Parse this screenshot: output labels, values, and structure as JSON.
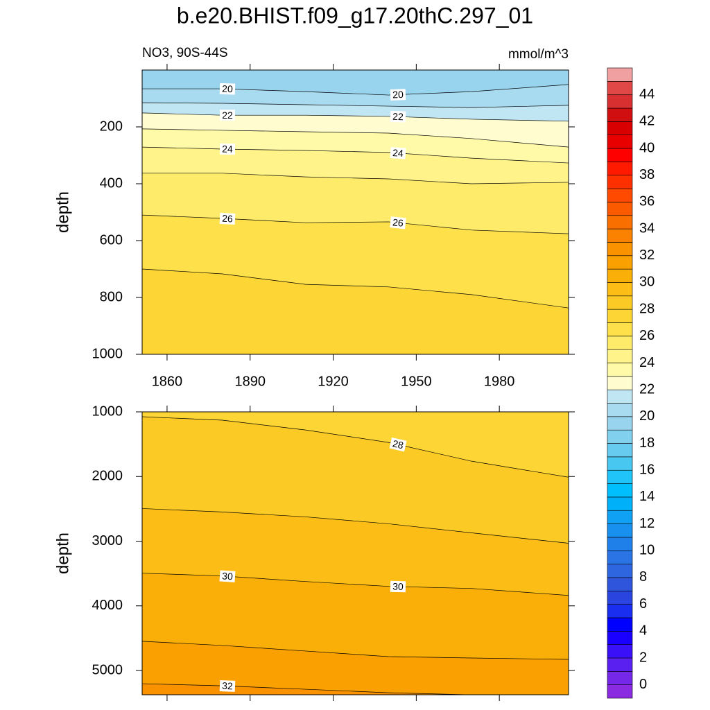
{
  "chart_data": [
    {
      "type": "contour",
      "title": "b.e20.BHIST.f09_g17.20thC.297_01",
      "subtitle": "NO3, 90S-44S",
      "units": "mmol/m^3",
      "ylabel": "depth",
      "xlim": [
        1851,
        2005
      ],
      "xticks": [
        1860,
        1890,
        1920,
        1950,
        1980
      ],
      "show_xtick_labels": true,
      "ylim": [
        0,
        1000
      ],
      "yticks": [
        200,
        400,
        600,
        800,
        1000
      ],
      "y_reversed": true,
      "x": [
        1851,
        1880,
        1910,
        1940,
        1970,
        2005
      ],
      "contours": [
        {
          "level": 20,
          "values": [
            66,
            66,
            76,
            88,
            76,
            51
          ]
        },
        {
          "level": 21,
          "values": [
            115,
            117,
            122,
            127,
            132,
            124
          ]
        },
        {
          "level": 22,
          "values": [
            151,
            159,
            159,
            163,
            173,
            180
          ]
        },
        {
          "level": 23,
          "values": [
            207,
            212,
            217,
            222,
            241,
            271
          ]
        },
        {
          "level": 24,
          "values": [
            271,
            278,
            283,
            290,
            310,
            327
          ]
        },
        {
          "level": 25,
          "values": [
            363,
            363,
            376,
            383,
            400,
            395
          ]
        },
        {
          "level": 26,
          "values": [
            510,
            522,
            537,
            534,
            563,
            576
          ]
        },
        {
          "level": 27,
          "values": [
            700,
            717,
            754,
            763,
            790,
            837
          ]
        }
      ]
    },
    {
      "type": "contour",
      "ylabel": "depth",
      "xlim": [
        1851,
        2005
      ],
      "xticks": [
        1860,
        1890,
        1920,
        1950,
        1980
      ],
      "show_xtick_labels": false,
      "ylim": [
        1000,
        5375
      ],
      "yticks": [
        1000,
        2000,
        3000,
        4000,
        5000
      ],
      "y_reversed": true,
      "x": [
        1851,
        1880,
        1910,
        1940,
        1970,
        2005
      ],
      "contours": [
        {
          "level": 28,
          "values": [
            1075,
            1129,
            1280,
            1473,
            1763,
            2011
          ]
        },
        {
          "level": 29,
          "values": [
            2495,
            2548,
            2624,
            2731,
            2871,
            3032
          ]
        },
        {
          "level": 30,
          "values": [
            3495,
            3538,
            3624,
            3699,
            3731,
            3839
          ]
        },
        {
          "level": 31,
          "values": [
            4548,
            4613,
            4699,
            4785,
            4807,
            4828
          ]
        },
        {
          "level": 32,
          "values": [
            5204,
            5237,
            5290,
            5344,
            5376,
            5387
          ]
        }
      ]
    }
  ],
  "colorbar": {
    "levels": [
      0,
      1,
      2,
      3,
      4,
      5,
      6,
      7,
      8,
      9,
      10,
      11,
      12,
      13,
      14,
      15,
      16,
      17,
      18,
      19,
      20,
      21,
      22,
      23,
      24,
      25,
      26,
      27,
      28,
      29,
      30,
      31,
      32,
      33,
      34,
      35,
      36,
      37,
      38,
      39,
      40,
      41,
      42,
      43,
      44,
      45
    ],
    "ticks": [
      0,
      2,
      4,
      6,
      8,
      10,
      12,
      14,
      16,
      18,
      20,
      22,
      24,
      26,
      28,
      30,
      32,
      34,
      36,
      38,
      40,
      42,
      44
    ],
    "colors": [
      "#8a2be2",
      "#7528e8",
      "#5a20f0",
      "#3a10f8",
      "#1a00ff",
      "#0000ff",
      "#1a2ef0",
      "#2a44e0",
      "#2e55dc",
      "#2e66e0",
      "#2a74e6",
      "#2080ea",
      "#1890f0",
      "#10a0f4",
      "#00b0f8",
      "#00bfff",
      "#20c4f8",
      "#48c8f0",
      "#66cbef",
      "#80d0ee",
      "#98d4ee",
      "#a8daf0",
      "#c0e6f4",
      "#fffdd0",
      "#fffaa8",
      "#fff38a",
      "#ffeb6a",
      "#fde04a",
      "#fdd535",
      "#fcca24",
      "#fbbd16",
      "#faae08",
      "#faa000",
      "#fa9200",
      "#fa8200",
      "#fa7000",
      "#fc5a00",
      "#ff4a00",
      "#ff3000",
      "#ff1a00",
      "#ff0000",
      "#e80000",
      "#d80000",
      "#d01010",
      "#d83030",
      "#e04848",
      "#f0a0a0"
    ]
  }
}
